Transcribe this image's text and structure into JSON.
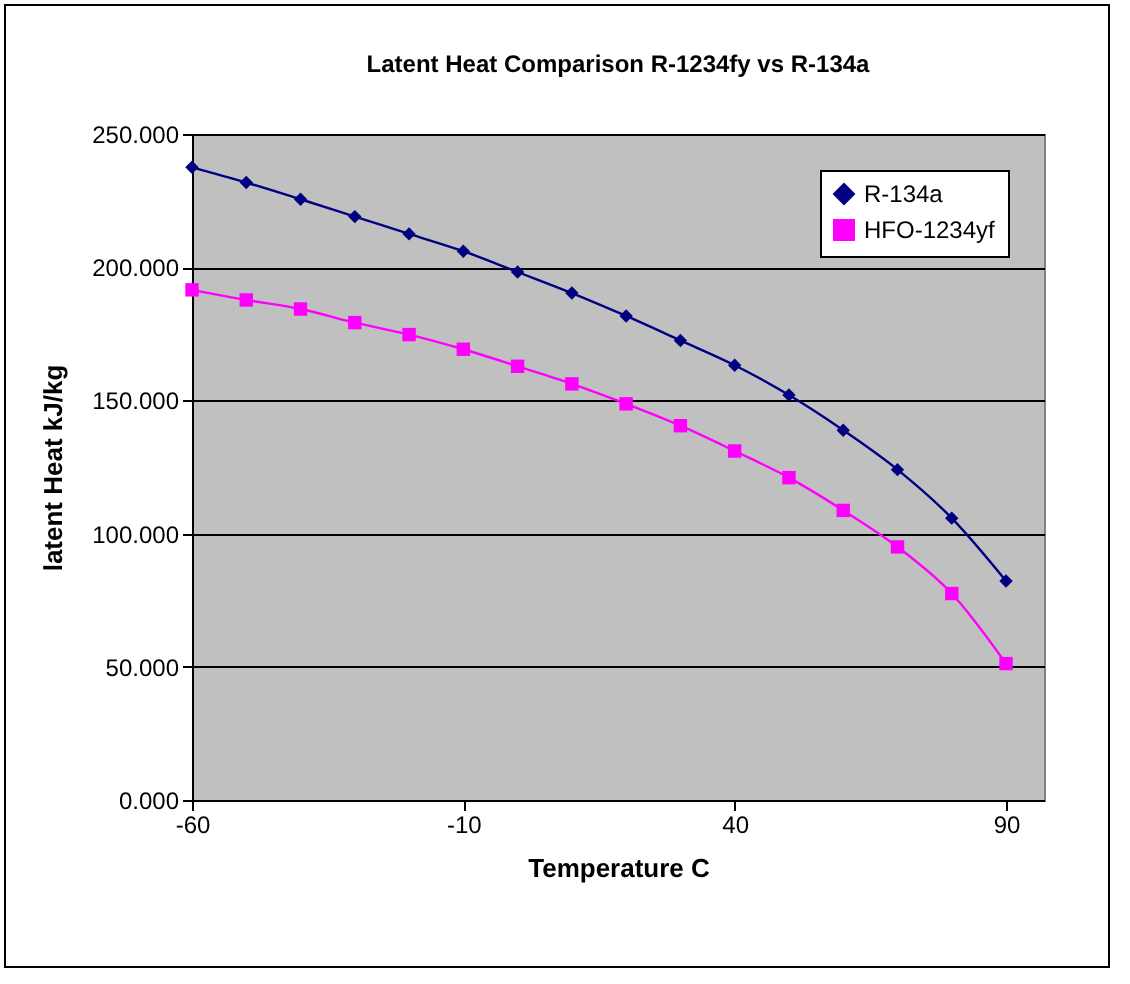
{
  "chart_data": {
    "type": "line",
    "title": "Latent Heat Comparison R-1234fy vs R-134a",
    "xlabel": "Temperature C",
    "ylabel": "latent Heat kJ/kg",
    "x": [
      -60,
      -50,
      -40,
      -30,
      -20,
      -10,
      0,
      10,
      20,
      30,
      40,
      50,
      60,
      70,
      80,
      90
    ],
    "series": [
      {
        "name": "R-134a",
        "color": "#000080",
        "marker": "diamond",
        "values": [
          237.5,
          231.8,
          225.5,
          219,
          212.5,
          206,
          198.2,
          190.3,
          181.7,
          172.5,
          163.2,
          152,
          138.8,
          124,
          105.8,
          82.2
        ]
      },
      {
        "name": "HFO-1234yf",
        "color": "#ff00ff",
        "marker": "square",
        "values": [
          191.5,
          187.7,
          184.3,
          179.2,
          174.7,
          169.2,
          162.8,
          156.2,
          148.7,
          140.5,
          131,
          121,
          108.7,
          95,
          77.5,
          51.2
        ]
      }
    ],
    "xlim": [
      -60,
      97
    ],
    "xticks": [
      -60,
      -10,
      40,
      90
    ],
    "ylim": [
      0,
      250
    ],
    "yticks": [
      {
        "value": 0,
        "label": "0.000"
      },
      {
        "value": 50,
        "label": "50.000"
      },
      {
        "value": 100,
        "label": "100.000"
      },
      {
        "value": 150,
        "label": "150.000"
      },
      {
        "value": 200,
        "label": "200.000"
      },
      {
        "value": 250,
        "label": "250.000"
      }
    ],
    "grid": "y",
    "legend": "top right",
    "line_style": "solid"
  }
}
